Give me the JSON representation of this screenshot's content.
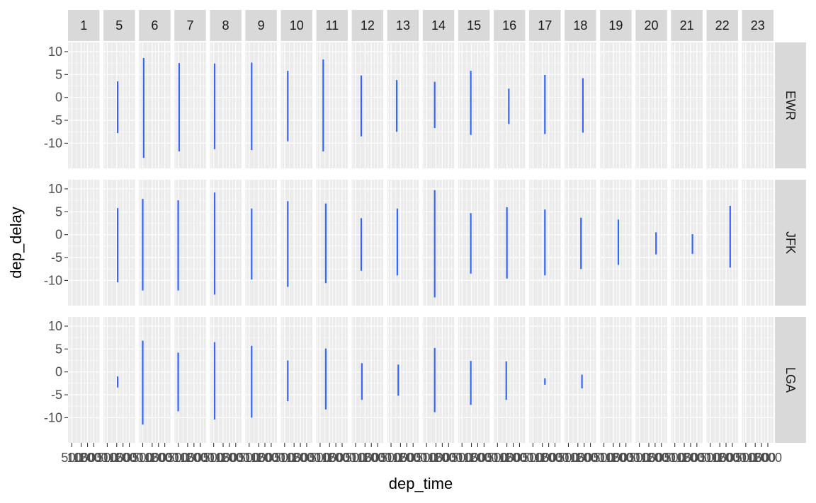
{
  "chart_data": {
    "type": "line",
    "facet_columns": [
      "1",
      "5",
      "6",
      "7",
      "8",
      "9",
      "10",
      "11",
      "12",
      "13",
      "14",
      "15",
      "16",
      "17",
      "18",
      "19",
      "20",
      "21",
      "22",
      "23"
    ],
    "facet_rows": [
      "EWR",
      "JFK",
      "LGA"
    ],
    "xlabel": "dep_time",
    "ylabel": "dep_delay",
    "ylim": [
      -15.5,
      12
    ],
    "y_ticks": [
      10,
      5,
      0,
      -5,
      -10
    ],
    "y_tick_labels": [
      "10",
      "5",
      "0",
      "-5",
      "-10"
    ],
    "x_tick_fractions": [
      0.12,
      0.42,
      0.62,
      0.82
    ],
    "x_tick_labels": [
      "500",
      "1000",
      "1500",
      "2000"
    ],
    "line_color": "#3366ff",
    "panel_bg": "#ebebeb",
    "strip_bg": "#d9d9d9",
    "grid": true,
    "series": [
      {
        "name": "EWR",
        "segments": [
          null,
          {
            "pos": 0.45,
            "min": -7.8,
            "max": 3.5
          },
          {
            "pos": 0.15,
            "min": -13.2,
            "max": 8.6
          },
          {
            "pos": 0.15,
            "min": -11.8,
            "max": 7.5
          },
          {
            "pos": 0.15,
            "min": -11.3,
            "max": 7.4
          },
          {
            "pos": 0.2,
            "min": -11.5,
            "max": 7.6
          },
          {
            "pos": 0.22,
            "min": -9.6,
            "max": 5.8
          },
          {
            "pos": 0.22,
            "min": -11.8,
            "max": 8.3
          },
          {
            "pos": 0.3,
            "min": -8.5,
            "max": 4.8
          },
          {
            "pos": 0.3,
            "min": -7.5,
            "max": 3.8
          },
          {
            "pos": 0.38,
            "min": -6.7,
            "max": 3.4
          },
          {
            "pos": 0.4,
            "min": -8.2,
            "max": 5.8
          },
          {
            "pos": 0.48,
            "min": -5.8,
            "max": 1.9
          },
          {
            "pos": 0.5,
            "min": -8.0,
            "max": 4.9
          },
          {
            "pos": 0.58,
            "min": -7.7,
            "max": 4.2
          },
          null,
          null,
          null,
          null,
          null
        ]
      },
      {
        "name": "JFK",
        "segments": [
          null,
          {
            "pos": 0.45,
            "min": -10.4,
            "max": 5.8
          },
          {
            "pos": 0.12,
            "min": -12.2,
            "max": 7.8
          },
          {
            "pos": 0.12,
            "min": -12.2,
            "max": 7.5
          },
          {
            "pos": 0.15,
            "min": -13.1,
            "max": 9.2
          },
          {
            "pos": 0.2,
            "min": -9.8,
            "max": 5.7
          },
          {
            "pos": 0.22,
            "min": -11.4,
            "max": 7.3
          },
          {
            "pos": 0.3,
            "min": -10.6,
            "max": 6.8
          },
          {
            "pos": 0.3,
            "min": -7.9,
            "max": 3.6
          },
          {
            "pos": 0.32,
            "min": -8.9,
            "max": 5.7
          },
          {
            "pos": 0.38,
            "min": -13.7,
            "max": 9.7
          },
          {
            "pos": 0.4,
            "min": -8.5,
            "max": 4.7
          },
          {
            "pos": 0.42,
            "min": -9.6,
            "max": 6.0
          },
          {
            "pos": 0.5,
            "min": -8.9,
            "max": 5.5
          },
          {
            "pos": 0.52,
            "min": -7.5,
            "max": 3.7
          },
          {
            "pos": 0.58,
            "min": -6.6,
            "max": 3.3
          },
          {
            "pos": 0.65,
            "min": -4.3,
            "max": 0.5
          },
          {
            "pos": 0.68,
            "min": -4.2,
            "max": 0.1
          },
          {
            "pos": 0.75,
            "min": -7.2,
            "max": 6.3
          },
          null
        ]
      },
      {
        "name": "LGA",
        "segments": [
          null,
          {
            "pos": 0.45,
            "min": -3.4,
            "max": -1.0
          },
          {
            "pos": 0.12,
            "min": -11.5,
            "max": 6.8
          },
          {
            "pos": 0.12,
            "min": -8.6,
            "max": 4.2
          },
          {
            "pos": 0.15,
            "min": -10.4,
            "max": 6.5
          },
          {
            "pos": 0.2,
            "min": -10.0,
            "max": 5.7
          },
          {
            "pos": 0.22,
            "min": -6.4,
            "max": 2.5
          },
          {
            "pos": 0.3,
            "min": -8.2,
            "max": 5.1
          },
          {
            "pos": 0.32,
            "min": -6.1,
            "max": 1.9
          },
          {
            "pos": 0.35,
            "min": -5.2,
            "max": 1.6
          },
          {
            "pos": 0.38,
            "min": -8.8,
            "max": 5.2
          },
          {
            "pos": 0.4,
            "min": -7.2,
            "max": 2.4
          },
          {
            "pos": 0.4,
            "min": -6.1,
            "max": 2.3
          },
          {
            "pos": 0.5,
            "min": -2.8,
            "max": -1.4
          },
          {
            "pos": 0.55,
            "min": -3.6,
            "max": -0.6
          },
          null,
          null,
          null,
          null,
          null
        ]
      }
    ]
  }
}
